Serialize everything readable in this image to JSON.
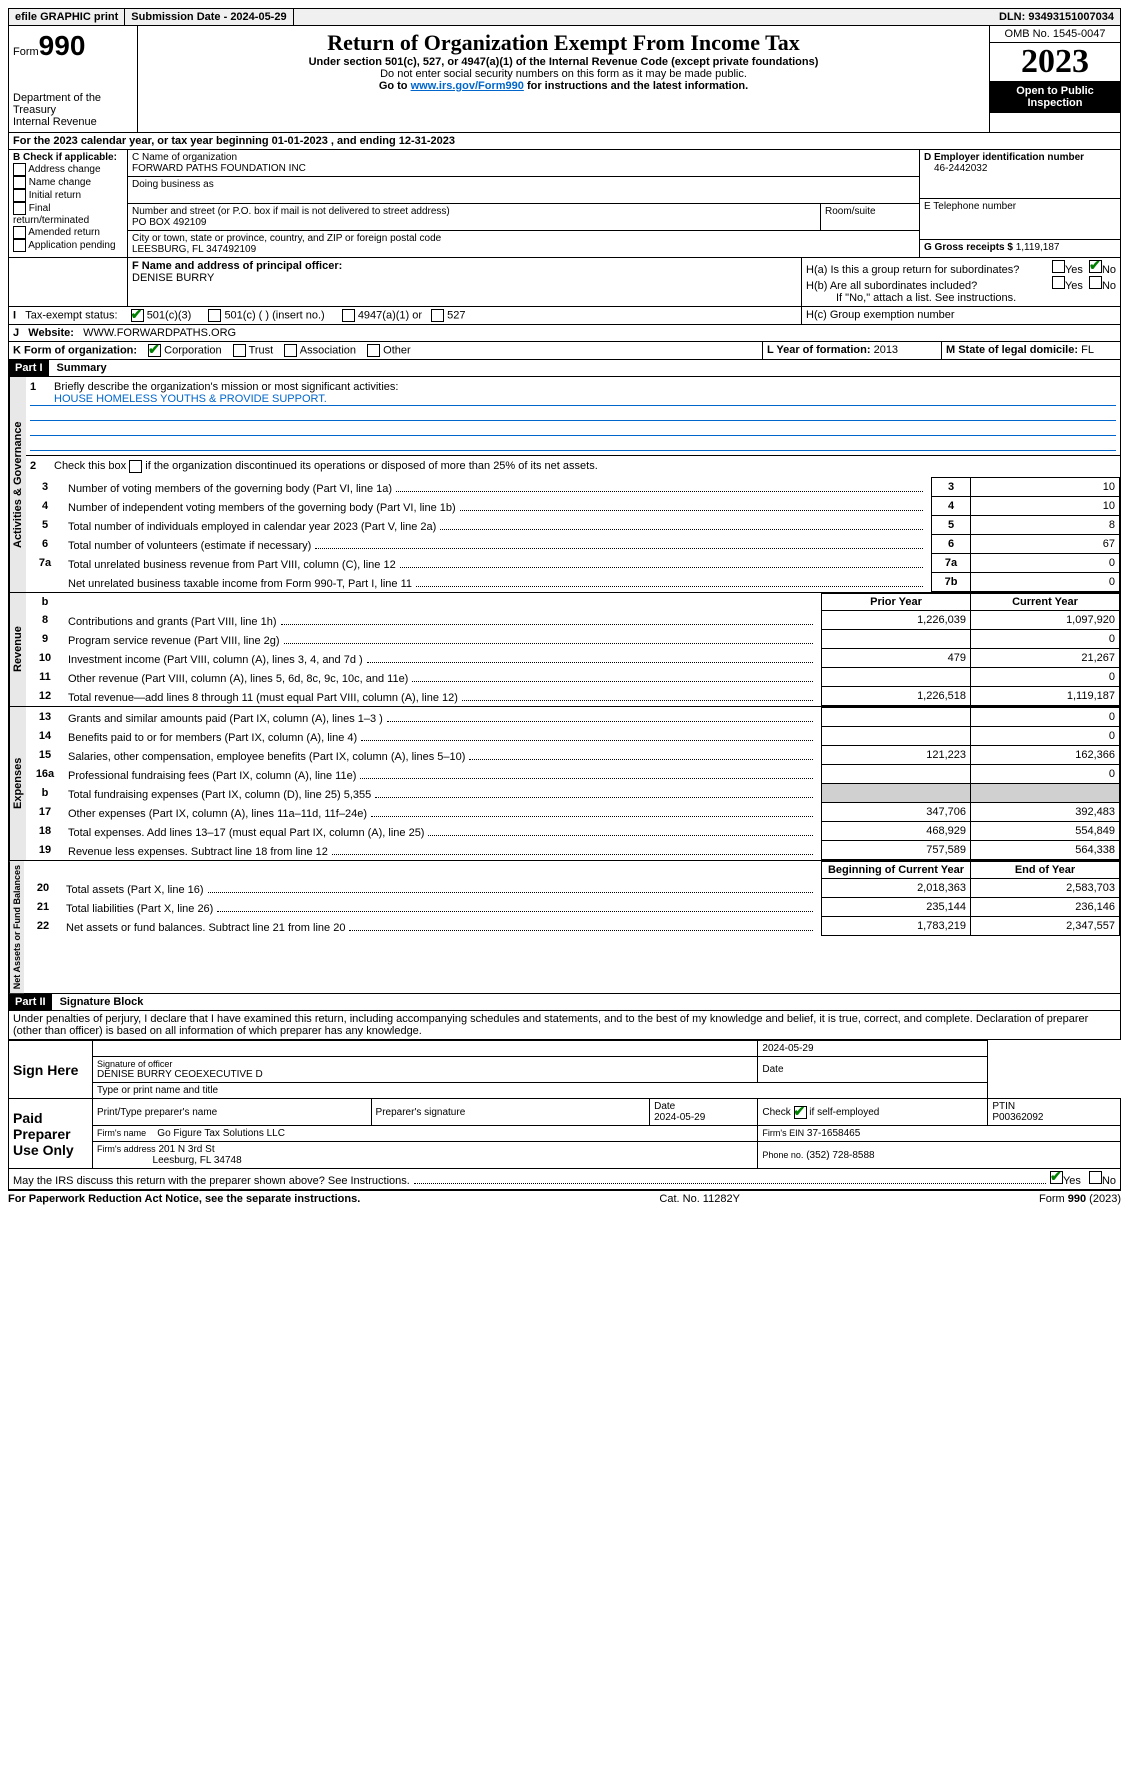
{
  "topbar": {
    "efile": "efile GRAPHIC print",
    "submission_label": "Submission Date - 2024-05-29",
    "dln_label": "DLN: 93493151007034"
  },
  "header": {
    "form_label": "Form",
    "form_number": "990",
    "dept": "Department of the Treasury",
    "irs": "Internal Revenue Service",
    "title": "Return of Organization Exempt From Income Tax",
    "subtitle": "Under section 501(c), 527, or 4947(a)(1) of the Internal Revenue Code (except private foundations)",
    "note1": "Do not enter social security numbers on this form as it may be made public.",
    "note2_pre": "Go to ",
    "note2_link": "www.irs.gov/Form990",
    "note2_post": " for instructions and the latest information.",
    "omb": "OMB No. 1545-0047",
    "year": "2023",
    "inspect": "Open to Public Inspection"
  },
  "line_a": "For the 2023 calendar year, or tax year beginning 01-01-2023    , and ending 12-31-2023",
  "box_b": {
    "label": "B Check if applicable:",
    "items": [
      "Address change",
      "Name change",
      "Initial return",
      "Final return/terminated",
      "Amended return",
      "Application pending"
    ]
  },
  "box_c": {
    "name_label": "C Name of organization",
    "name": "FORWARD PATHS FOUNDATION INC",
    "dba_label": "Doing business as",
    "addr_label": "Number and street (or P.O. box if mail is not delivered to street address)",
    "room_label": "Room/suite",
    "addr": "PO BOX 492109",
    "city_label": "City or town, state or province, country, and ZIP or foreign postal code",
    "city": "LEESBURG, FL  347492109"
  },
  "box_d": {
    "label": "D Employer identification number",
    "value": "46-2442032"
  },
  "box_e": {
    "label": "E Telephone number"
  },
  "box_g": {
    "label": "G Gross receipts $",
    "value": "1,119,187"
  },
  "box_f": {
    "label": "F  Name and address of principal officer:",
    "name": "DENISE BURRY"
  },
  "box_h": {
    "a": "H(a)  Is this a group return for subordinates?",
    "b": "H(b)  Are all subordinates included?",
    "b_note": "If \"No,\" attach a list. See instructions.",
    "c": "H(c)  Group exemption number",
    "yes": "Yes",
    "no": "No"
  },
  "box_i": {
    "label": "Tax-exempt status:",
    "opts": [
      "501(c)(3)",
      "501(c) (  ) (insert no.)",
      "4947(a)(1) or",
      "527"
    ]
  },
  "box_j": {
    "label": "Website:",
    "value": "WWW.FORWARDPATHS.ORG"
  },
  "box_k": {
    "label": "K Form of organization:",
    "opts": [
      "Corporation",
      "Trust",
      "Association",
      "Other"
    ]
  },
  "box_l": {
    "label": "L Year of formation:",
    "value": "2013"
  },
  "box_m": {
    "label": "M State of legal domicile:",
    "value": "FL"
  },
  "parts": {
    "p1": "Part I",
    "p1_title": "Summary",
    "p2": "Part II",
    "p2_title": "Signature Block"
  },
  "summary": {
    "q1": "Briefly describe the organization's mission or most significant activities:",
    "q1_ans": "HOUSE HOMELESS YOUTHS & PROVIDE SUPPORT.",
    "q2": "Check this box      if the organization discontinued its operations or disposed of more than 25% of its net assets.",
    "lines_gov": [
      {
        "n": "3",
        "t": "Number of voting members of the governing body (Part VI, line 1a)",
        "b": "3",
        "v": "10"
      },
      {
        "n": "4",
        "t": "Number of independent voting members of the governing body (Part VI, line 1b)",
        "b": "4",
        "v": "10"
      },
      {
        "n": "5",
        "t": "Total number of individuals employed in calendar year 2023 (Part V, line 2a)",
        "b": "5",
        "v": "8"
      },
      {
        "n": "6",
        "t": "Total number of volunteers (estimate if necessary)",
        "b": "6",
        "v": "67"
      },
      {
        "n": "7a",
        "t": "Total unrelated business revenue from Part VIII, column (C), line 12",
        "b": "7a",
        "v": "0"
      },
      {
        "n": "",
        "t": "Net unrelated business taxable income from Form 990-T, Part I, line 11",
        "b": "7b",
        "v": "0"
      }
    ],
    "hdr_b": "b",
    "hdr_prior": "Prior Year",
    "hdr_current": "Current Year",
    "revenue": [
      {
        "n": "8",
        "t": "Contributions and grants (Part VIII, line 1h)",
        "p": "1,226,039",
        "c": "1,097,920"
      },
      {
        "n": "9",
        "t": "Program service revenue (Part VIII, line 2g)",
        "p": "",
        "c": "0"
      },
      {
        "n": "10",
        "t": "Investment income (Part VIII, column (A), lines 3, 4, and 7d )",
        "p": "479",
        "c": "21,267"
      },
      {
        "n": "11",
        "t": "Other revenue (Part VIII, column (A), lines 5, 6d, 8c, 9c, 10c, and 11e)",
        "p": "",
        "c": "0"
      },
      {
        "n": "12",
        "t": "Total revenue—add lines 8 through 11 (must equal Part VIII, column (A), line 12)",
        "p": "1,226,518",
        "c": "1,119,187"
      }
    ],
    "expenses": [
      {
        "n": "13",
        "t": "Grants and similar amounts paid (Part IX, column (A), lines 1–3 )",
        "p": "",
        "c": "0"
      },
      {
        "n": "14",
        "t": "Benefits paid to or for members (Part IX, column (A), line 4)",
        "p": "",
        "c": "0"
      },
      {
        "n": "15",
        "t": "Salaries, other compensation, employee benefits (Part IX, column (A), lines 5–10)",
        "p": "121,223",
        "c": "162,366"
      },
      {
        "n": "16a",
        "t": "Professional fundraising fees (Part IX, column (A), line 11e)",
        "p": "",
        "c": "0"
      },
      {
        "n": "b",
        "t": "Total fundraising expenses (Part IX, column (D), line 25) 5,355",
        "p": "__shade__",
        "c": "__shade__"
      },
      {
        "n": "17",
        "t": "Other expenses (Part IX, column (A), lines 11a–11d, 11f–24e)",
        "p": "347,706",
        "c": "392,483"
      },
      {
        "n": "18",
        "t": "Total expenses. Add lines 13–17 (must equal Part IX, column (A), line 25)",
        "p": "468,929",
        "c": "554,849"
      },
      {
        "n": "19",
        "t": "Revenue less expenses. Subtract line 18 from line 12",
        "p": "757,589",
        "c": "564,338"
      }
    ],
    "hdr_begin": "Beginning of Current Year",
    "hdr_end": "End of Year",
    "netassets": [
      {
        "n": "20",
        "t": "Total assets (Part X, line 16)",
        "p": "2,018,363",
        "c": "2,583,703"
      },
      {
        "n": "21",
        "t": "Total liabilities (Part X, line 26)",
        "p": "235,144",
        "c": "236,146"
      },
      {
        "n": "22",
        "t": "Net assets or fund balances. Subtract line 21 from line 20",
        "p": "1,783,219",
        "c": "2,347,557"
      }
    ],
    "tabs": {
      "gov": "Activities & Governance",
      "rev": "Revenue",
      "exp": "Expenses",
      "net": "Net Assets or Fund Balances"
    }
  },
  "sigblock": {
    "penalty": "Under penalties of perjury, I declare that I have examined this return, including accompanying schedules and statements, and to the best of my knowledge and belief, it is true, correct, and complete. Declaration of preparer (other than officer) is based on all information of which preparer has any knowledge.",
    "sign_here": "Sign Here",
    "sig_officer": "Signature of officer",
    "officer_name": "DENISE BURRY CEOEXECUTIVE D",
    "type_name": "Type or print name and title",
    "date": "Date",
    "date_val": "2024-05-29",
    "paid_label": "Paid Preparer Use Only",
    "prep_name_label": "Print/Type preparer's name",
    "prep_sig_label": "Preparer's signature",
    "prep_date": "2024-05-29",
    "check_self": "Check        if self-employed",
    "ptin_label": "PTIN",
    "ptin": "P00362092",
    "firm_name_label": "Firm's name",
    "firm_name": "Go Figure Tax Solutions LLC",
    "firm_ein_label": "Firm's EIN",
    "firm_ein": "37-1658465",
    "firm_addr_label": "Firm's address",
    "firm_addr1": "201 N 3rd St",
    "firm_addr2": "Leesburg, FL  34748",
    "phone_label": "Phone no.",
    "phone": "(352) 728-8588",
    "discuss": "May the IRS discuss this return with the preparer shown above? See Instructions."
  },
  "footer": {
    "paperwork": "For Paperwork Reduction Act Notice, see the separate instructions.",
    "cat": "Cat. No. 11282Y",
    "form": "Form 990 (2023)"
  }
}
